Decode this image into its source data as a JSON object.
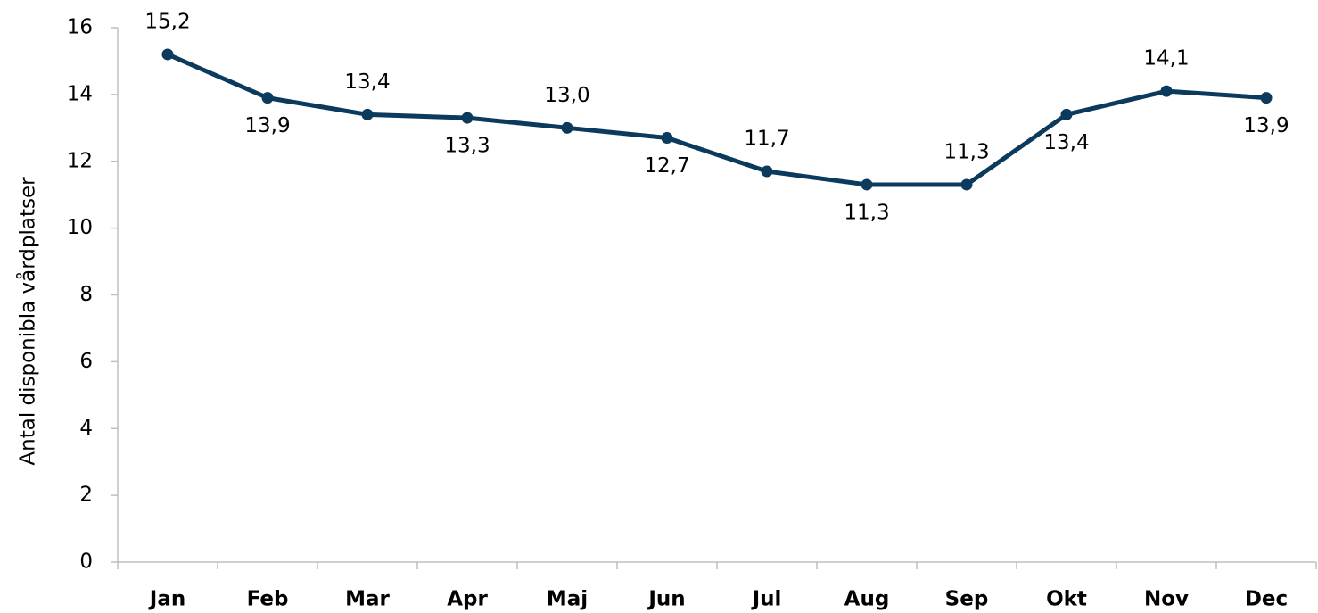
{
  "chart_data": {
    "type": "line",
    "y_label": "Antal disponibla vårdplatser",
    "categories": [
      "Jan",
      "Feb",
      "Mar",
      "Apr",
      "Maj",
      "Jun",
      "Jul",
      "Aug",
      "Sep",
      "Okt",
      "Nov",
      "Dec"
    ],
    "values": [
      15.2,
      13.9,
      13.4,
      13.3,
      13.0,
      12.7,
      11.7,
      11.3,
      11.3,
      13.4,
      14.1,
      13.9
    ],
    "value_labels": [
      "15,2",
      "13,9",
      "13,4",
      "13,3",
      "13,0",
      "12,7",
      "11,7",
      "11,3",
      "11,3",
      "13,4",
      "14,1",
      "13,9"
    ],
    "color": "#0b3a5d",
    "ylim": [
      0,
      16
    ],
    "yticks": [
      0,
      2,
      4,
      6,
      8,
      10,
      12,
      14,
      16
    ],
    "grid": false
  }
}
